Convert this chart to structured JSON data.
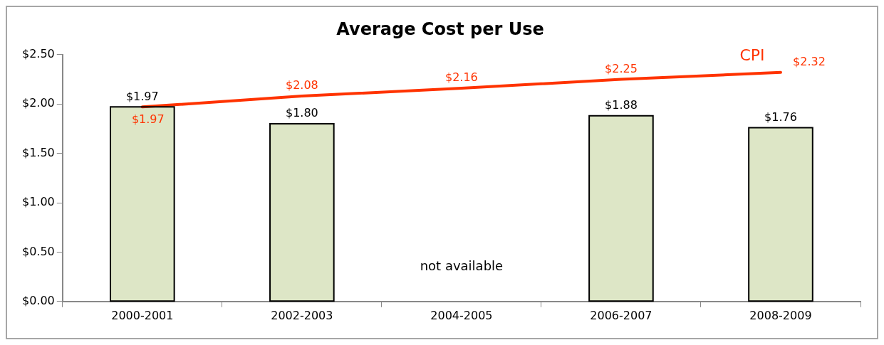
{
  "chart_data": {
    "type": "bar",
    "title": "Average Cost per Use",
    "categories": [
      "2000-2001",
      "2002-2003",
      "2004-2005",
      "2006-2007",
      "2008-2009"
    ],
    "series": [
      {
        "type": "bar",
        "color": "#dde6c6",
        "values": [
          1.97,
          1.8,
          null,
          1.88,
          1.76
        ],
        "value_labels": [
          "$1.97",
          "$1.80",
          null,
          "$1.88",
          "$1.76"
        ]
      },
      {
        "type": "line",
        "name": "CPI",
        "color": "#ff3300",
        "values": [
          1.97,
          2.08,
          2.16,
          2.25,
          2.32
        ],
        "value_labels": [
          "$1.97",
          "$2.08",
          "$2.16",
          "$2.25",
          "$2.32"
        ]
      }
    ],
    "ylim": [
      0,
      2.5
    ],
    "yticks": [
      {
        "value": 0,
        "label": "$0.00"
      },
      {
        "value": 0.5,
        "label": "$0.50"
      },
      {
        "value": 1,
        "label": "$1.00"
      },
      {
        "value": 1.5,
        "label": "$1.50"
      },
      {
        "value": 2,
        "label": "$2.00"
      },
      {
        "value": 2.5,
        "label": "$2.50"
      }
    ],
    "annotations": [
      "not available"
    ],
    "grid": false,
    "legend": false
  }
}
